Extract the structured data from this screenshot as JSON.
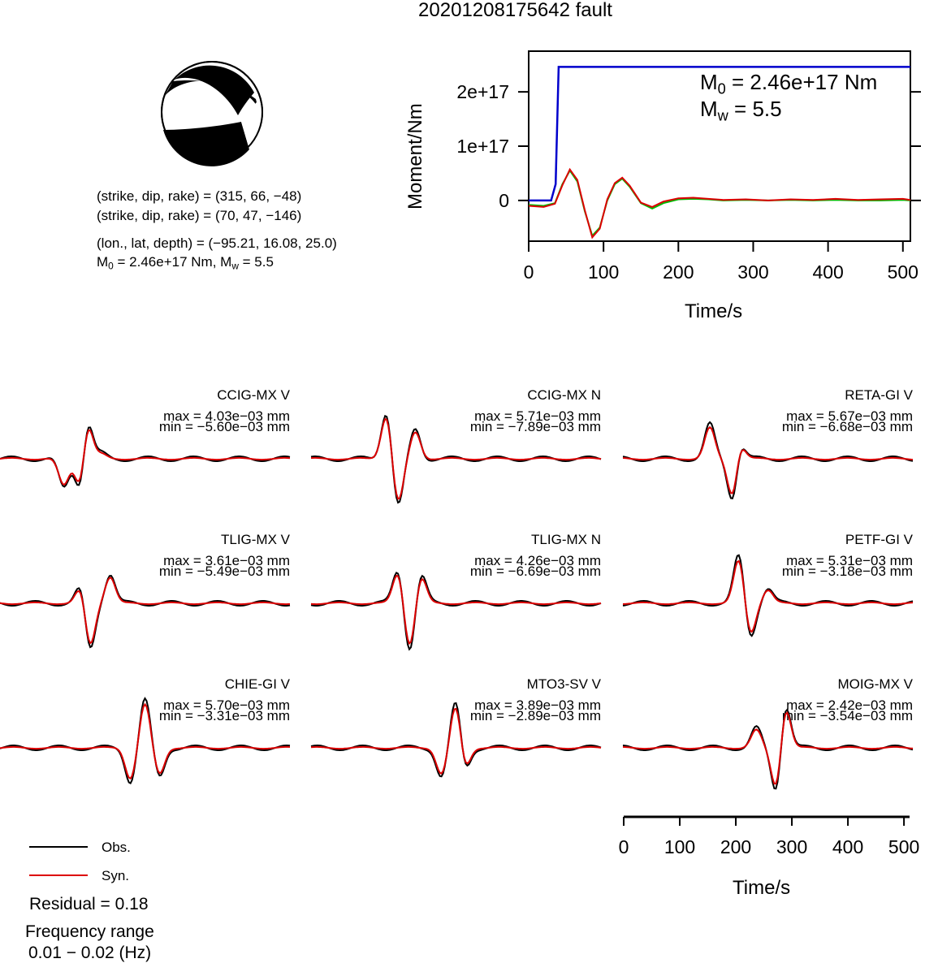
{
  "title": "20201208175642 fault",
  "mechanism": {
    "nodal1": "(strike, dip, rake) = (315, 66, −48)",
    "nodal2": "(strike, dip, rake) = (70, 47, −146)",
    "location": "(lon., lat, depth) = (−95.21, 16.08, 25.0)",
    "m0_label": "M",
    "m0_sub": "0",
    "m0_value": " = 2.46e+17 Nm, M",
    "mw_sub": "w",
    "mw_value": " = 5.5"
  },
  "moment_panel": {
    "ylabel": "Moment/Nm",
    "xlabel": "Time/s",
    "yticks": [
      "0",
      "1e+17",
      "2e+17"
    ],
    "xticks": [
      "0",
      "100",
      "200",
      "300",
      "400",
      "500"
    ],
    "annot_m0_main": "M",
    "annot_m0_sub": "0",
    "annot_m0_rest": " = 2.46e+17 Nm",
    "annot_mw_main": "M",
    "annot_mw_sub": "w",
    "annot_mw_rest": " = 5.5"
  },
  "chart_data": {
    "type": "line",
    "moment_function": {
      "xlim": [
        0,
        510
      ],
      "ylim": [
        -7.5e+16,
        2.75e+17
      ],
      "cumulative_moment": {
        "color": "#0000cc",
        "x": [
          0,
          30,
          36,
          40,
          510
        ],
        "y": [
          0,
          0,
          3e+16,
          2.46e+17,
          2.46e+17
        ]
      },
      "moment_rate_traces": [
        {
          "color": "#00bb00",
          "x": [
            0,
            20,
            35,
            45,
            55,
            65,
            75,
            85,
            95,
            105,
            115,
            125,
            135,
            150,
            165,
            180,
            200,
            220,
            240,
            260,
            290,
            320,
            350,
            380,
            410,
            440,
            470,
            500,
            510
          ],
          "y": [
            -8000000000000000.0,
            -1e+16,
            -5000000000000000.0,
            3e+16,
            5.5e+16,
            3.5e+16,
            -2e+16,
            -6.5e+16,
            -5e+16,
            0.0,
            3e+16,
            4e+16,
            2.5e+16,
            -5000000000000000.0,
            -1.5e+16,
            -5000000000000000.0,
            2000000000000000.0,
            3000000000000000.0,
            2000000000000000.0,
            0.0,
            1000000000000000.0,
            0.0,
            1000000000000000.0,
            0.0,
            1000000000000000.0,
            0.0,
            0.0,
            1000000000000000.0,
            0.0
          ]
        },
        {
          "color": "#dd0000",
          "x": [
            0,
            20,
            35,
            45,
            55,
            65,
            75,
            85,
            95,
            105,
            115,
            125,
            135,
            150,
            165,
            180,
            200,
            220,
            240,
            260,
            290,
            320,
            350,
            380,
            410,
            440,
            470,
            500,
            510
          ],
          "y": [
            -1e+16,
            -1.2e+16,
            -6000000000000000.0,
            2.8e+16,
            5.7e+16,
            3.8e+16,
            -1.8e+16,
            -6.8e+16,
            -5.2e+16,
            2000000000000000.0,
            3.2e+16,
            4.2e+16,
            2.7e+16,
            -4000000000000000.0,
            -1.2e+16,
            -2000000000000000.0,
            4000000000000000.0,
            5000000000000000.0,
            3000000000000000.0,
            1000000000000000.0,
            2000000000000000.0,
            0.0,
            2000000000000000.0,
            1000000000000000.0,
            3000000000000000.0,
            1000000000000000.0,
            2000000000000000.0,
            3000000000000000.0,
            1000000000000000.0
          ]
        }
      ]
    },
    "waveforms": [
      {
        "station": "CCIG-MX V",
        "max": "max = 4.03e−03 mm",
        "min": "min = −5.60e−03 mm"
      },
      {
        "station": "CCIG-MX N",
        "max": "max = 5.71e−03 mm",
        "min": "min = −7.89e−03 mm"
      },
      {
        "station": "RETA-GI V",
        "max": "max = 5.67e−03 mm",
        "min": "min = −6.68e−03 mm"
      },
      {
        "station": "TLIG-MX V",
        "max": "max = 3.61e−03 mm",
        "min": "min = −5.49e−03 mm"
      },
      {
        "station": "TLIG-MX N",
        "max": "max = 4.26e−03 mm",
        "min": "min = −6.69e−03 mm"
      },
      {
        "station": "PETF-GI V",
        "max": "max = 5.31e−03 mm",
        "min": "min = −3.18e−03 mm"
      },
      {
        "station": "CHIE-GI V",
        "max": "max = 5.70e−03 mm",
        "min": "min = −3.31e−03 mm"
      },
      {
        "station": "MTO3-SV V",
        "max": "max = 3.89e−03 mm",
        "min": "min = −2.89e−03 mm"
      },
      {
        "station": "MOIG-MX V",
        "max": "max = 2.42e−03 mm",
        "min": "min = −3.54e−03 mm"
      }
    ],
    "waveform_axis": {
      "xlabel": "Time/s",
      "xticks": [
        "0",
        "100",
        "200",
        "300",
        "400",
        "500"
      ],
      "xlim": [
        0,
        510
      ]
    }
  },
  "legend": {
    "obs": "Obs.",
    "syn": "Syn.",
    "obs_color": "#000000",
    "syn_color": "#dd0000"
  },
  "residual": "Residual = 0.18",
  "freq_title": "Frequency range",
  "freq_value": "0.01 − 0.02 (Hz)"
}
